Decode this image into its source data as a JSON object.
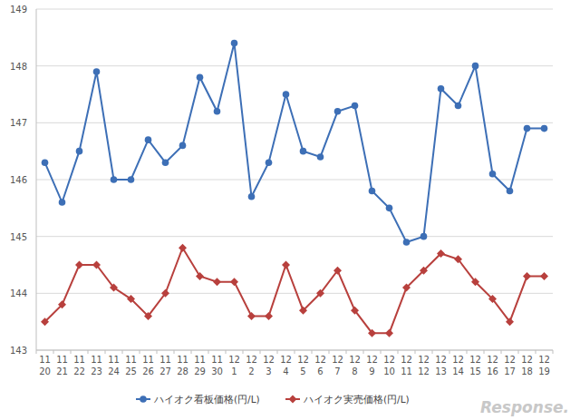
{
  "chart_data": {
    "type": "line",
    "categories": [
      "11\n20",
      "11\n21",
      "11\n22",
      "11\n23",
      "11\n24",
      "11\n25",
      "11\n26",
      "11\n27",
      "11\n28",
      "11\n29",
      "11\n30",
      "12\n1",
      "12\n2",
      "12\n3",
      "12\n4",
      "12\n5",
      "12\n6",
      "12\n7",
      "12\n8",
      "12\n9",
      "12\n10",
      "12\n11",
      "12\n12",
      "12\n13",
      "12\n14",
      "12\n15",
      "12\n16",
      "12\n17",
      "12\n18",
      "12\n19"
    ],
    "series": [
      {
        "name": "ハイオク看板価格(円/L)",
        "color": "#3d6fb6",
        "marker": "circle",
        "values": [
          146.3,
          145.6,
          146.5,
          147.9,
          146.0,
          146.0,
          146.7,
          146.3,
          146.6,
          147.8,
          147.2,
          148.4,
          145.7,
          146.3,
          147.5,
          146.5,
          146.4,
          147.2,
          147.3,
          145.8,
          145.5,
          144.9,
          145.0,
          147.6,
          147.3,
          148.0,
          146.1,
          145.8,
          146.9,
          146.9
        ]
      },
      {
        "name": "ハイオク実売価格(円/L)",
        "color": "#b8403d",
        "marker": "diamond",
        "values": [
          143.5,
          143.8,
          144.5,
          144.5,
          144.1,
          143.9,
          143.6,
          144.0,
          144.8,
          144.3,
          144.2,
          144.2,
          143.6,
          143.6,
          144.5,
          143.7,
          144.0,
          144.4,
          143.7,
          143.3,
          143.3,
          144.1,
          144.4,
          144.7,
          144.6,
          144.2,
          143.9,
          143.5,
          144.3,
          144.3
        ]
      }
    ],
    "ylim": [
      143,
      149
    ],
    "yticks": [
      143,
      144,
      145,
      146,
      147,
      148,
      149
    ],
    "grid": true,
    "legend": "bottom",
    "annotations": [
      "Response."
    ]
  }
}
